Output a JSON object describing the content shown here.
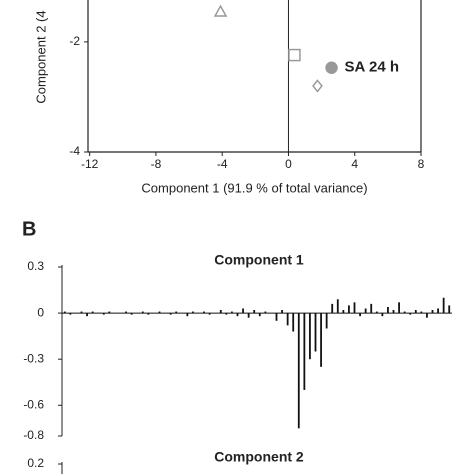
{
  "chart_data": [
    {
      "type": "scatter",
      "xlabel": "Component 1 (91.9 % of total variance)",
      "ylabel": "Component 2 (4",
      "x": [
        -4.1,
        0.36,
        2.6,
        1.75
      ],
      "values": [
        -1.45,
        -2.24,
        -2.47,
        -2.8
      ],
      "markers": [
        "triangle",
        "square",
        "circle",
        "diamond"
      ],
      "filled": [
        false,
        false,
        true,
        false
      ],
      "point_labels": [
        null,
        null,
        "SA 24 h",
        null
      ],
      "color": "#999999",
      "xlim": [
        -12.1,
        8
      ],
      "ylim": [
        -4,
        -1.24
      ],
      "xticks": [
        -12,
        -8,
        -4,
        0,
        4,
        8
      ],
      "yticks": [
        -2,
        -4
      ]
    },
    {
      "type": "bar",
      "panel_label": "B",
      "title": "Component 1",
      "color": "#111111",
      "values": [
        0.01,
        -0.01,
        0,
        0.01,
        -0.02,
        0.01,
        0,
        -0.01,
        0.01,
        0,
        0,
        0.01,
        -0.01,
        0,
        0.01,
        -0.01,
        0,
        0.01,
        0,
        -0.01,
        0.01,
        0,
        -0.02,
        0.01,
        0,
        0.01,
        -0.01,
        0,
        0.02,
        -0.01,
        0.01,
        -0.02,
        0.03,
        -0.03,
        0.02,
        -0.02,
        0.01,
        0,
        -0.05,
        0.02,
        -0.08,
        -0.12,
        -0.75,
        -0.5,
        -0.3,
        -0.25,
        -0.35,
        -0.1,
        0.06,
        0.09,
        0.02,
        0.05,
        0.07,
        -0.02,
        0.03,
        0.06,
        0.01,
        -0.02,
        0.04,
        0.02,
        0.07,
        0.01,
        -0.01,
        0.02,
        0.01,
        -0.03,
        0.02,
        0.03,
        0.1,
        0.05
      ],
      "ylim": [
        -0.8,
        0.3
      ],
      "yticks": [
        0.3,
        0,
        -0.3,
        -0.6,
        -0.8
      ]
    },
    {
      "type": "bar",
      "title": "Component 2",
      "color": "#111111",
      "values": [],
      "ylim": [
        0.13,
        0.2
      ],
      "yticks": [
        0.2
      ]
    }
  ]
}
